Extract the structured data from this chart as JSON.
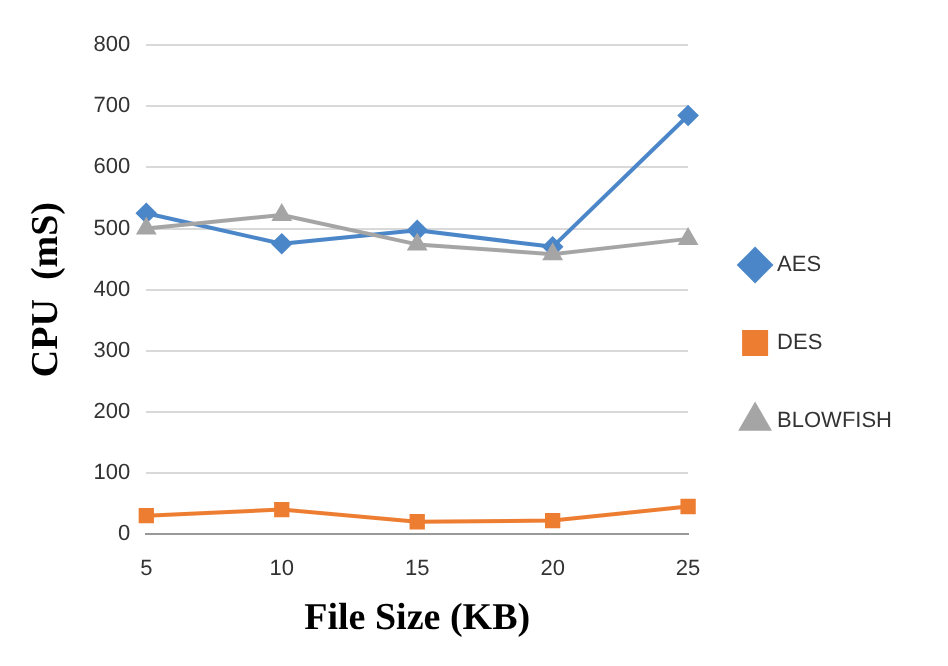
{
  "chart_data": {
    "type": "line",
    "xlabel": "File Size (KB)",
    "ylabel": "CPU  (mS)",
    "categories": [
      "5",
      "10",
      "15",
      "20",
      "25"
    ],
    "ylim": [
      0,
      800
    ],
    "yticks": [
      0,
      100,
      200,
      300,
      400,
      500,
      600,
      700,
      800
    ],
    "grid": "y",
    "legend": "right",
    "series": [
      {
        "name": "AES",
        "color": "#4a86c8",
        "marker": "diamond",
        "values": [
          525,
          475,
          497,
          470,
          685
        ]
      },
      {
        "name": "DES",
        "color": "#ed7d31",
        "marker": "square",
        "values": [
          30,
          40,
          20,
          22,
          45
        ]
      },
      {
        "name": "BLOWFISH",
        "color": "#a5a5a5",
        "marker": "triangle",
        "values": [
          500,
          522,
          474,
          458,
          483
        ]
      }
    ]
  }
}
